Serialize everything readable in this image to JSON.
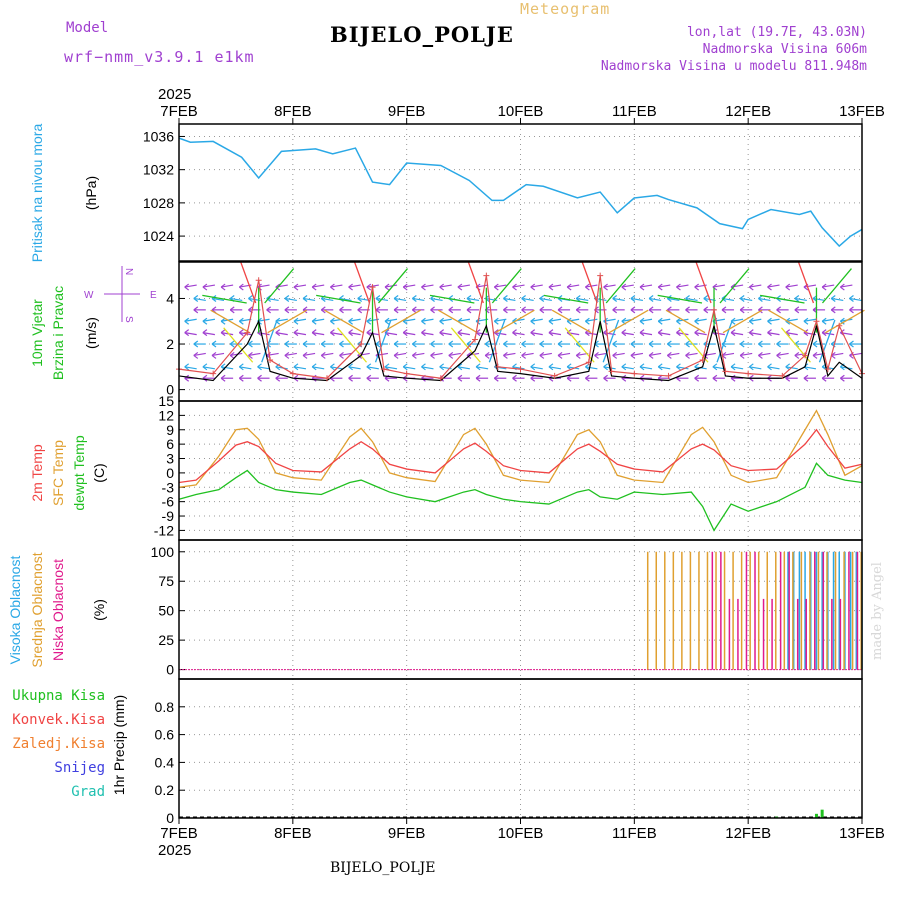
{
  "header": {
    "title": "BIJELO_POLJE",
    "model_label": "Model",
    "model_name": "wrf−nmm_v3.9.1  e1km",
    "meteogram": "Meteogram",
    "lonlat": "lon,lat (19.7E, 43.03N)",
    "elevation": "Nadmorska Visina 606m",
    "elevation_model": "Nadmorska Visina u modelu 811.948m",
    "footer": "BIJELO_POLJE",
    "credit": "made by Angel"
  },
  "time_axis": {
    "year": "2025",
    "ticks": [
      "7FEB",
      "8FEB",
      "9FEB",
      "10FEB",
      "11FEB",
      "12FEB",
      "13FEB"
    ]
  },
  "colors": {
    "pressure": "#2aa8e6",
    "t2m": "#f04444",
    "sfc": "#e0a030",
    "dewpt": "#20c020",
    "wind_speed": "#000000",
    "gust": "#e05050",
    "high_cloud": "#2aa8e6",
    "mid_cloud": "#e0a030",
    "low_cloud": "#e01a8c",
    "purple": "#a040d0",
    "grid": "#999999"
  },
  "wind_compass": {
    "n": "N",
    "s": "S",
    "e": "E",
    "w": "W"
  },
  "chart_data": [
    {
      "type": "line",
      "panel": "pressure",
      "ylabels": [
        "Pritisak na nivou mora",
        "(hPa)"
      ],
      "yticks": [
        "1024",
        "1028",
        "1032",
        "1036"
      ],
      "ylim": [
        1021,
        1037.5
      ],
      "x": [
        0,
        0.1,
        0.3,
        0.55,
        0.7,
        0.9,
        1.2,
        1.35,
        1.55,
        1.7,
        1.85,
        2.0,
        2.3,
        2.55,
        2.75,
        2.85,
        3.05,
        3.2,
        3.5,
        3.7,
        3.85,
        4.0,
        4.2,
        4.3,
        4.55,
        4.75,
        4.95,
        5.0,
        5.2,
        5.45,
        5.55,
        5.65,
        5.8,
        5.9,
        6.0
      ],
      "series": [
        {
          "values": [
            1035.8,
            1035.3,
            1035.4,
            1033.5,
            1031,
            1034.2,
            1034.5,
            1033.9,
            1034.6,
            1030.5,
            1030.2,
            1032.8,
            1032.5,
            1030.7,
            1028.3,
            1028.3,
            1030.2,
            1030.0,
            1028.6,
            1029.3,
            1026.8,
            1028.6,
            1028.9,
            1028.4,
            1027.4,
            1025.5,
            1024.9,
            1026.0,
            1027.2,
            1026.6,
            1027.0,
            1025.0,
            1022.8,
            1024.0,
            1024.8
          ]
        }
      ]
    },
    {
      "type": "line",
      "panel": "wind",
      "ylabels": [
        "10m Vjetar",
        "Brzina i Pravac",
        "(m/s)"
      ],
      "yticks": [
        "0",
        "2",
        "4"
      ],
      "ylim": [
        -0.5,
        5.6
      ],
      "x": [
        0,
        0.3,
        0.6,
        0.7,
        0.8,
        1.0,
        1.3,
        1.6,
        1.7,
        1.8,
        2.0,
        2.3,
        2.6,
        2.7,
        2.8,
        3.0,
        3.3,
        3.6,
        3.7,
        3.8,
        4.0,
        4.3,
        4.6,
        4.7,
        4.8,
        5.0,
        5.3,
        5.5,
        5.6,
        5.7,
        5.8,
        6.0
      ],
      "series": [
        {
          "name": "speed",
          "values": [
            0.6,
            0.4,
            2.0,
            3.0,
            0.8,
            0.5,
            0.4,
            1.5,
            2.5,
            0.6,
            0.5,
            0.4,
            1.7,
            2.8,
            0.8,
            0.7,
            0.5,
            0.8,
            3.0,
            0.6,
            0.5,
            0.4,
            1.0,
            2.8,
            0.6,
            0.5,
            0.5,
            1.0,
            2.8,
            0.6,
            1.2,
            0.5
          ]
        },
        {
          "name": "gust",
          "values": [
            0.9,
            0.7,
            2.5,
            4.8,
            1.3,
            0.7,
            0.5,
            2.0,
            4.5,
            0.9,
            0.7,
            0.5,
            2.2,
            5.0,
            1.0,
            0.9,
            0.6,
            1.2,
            5.0,
            0.8,
            0.7,
            0.6,
            1.3,
            3.5,
            0.8,
            0.7,
            0.6,
            1.5,
            3.0,
            0.9,
            2.8,
            0.7
          ]
        }
      ]
    },
    {
      "type": "line",
      "panel": "temperature",
      "ylabels": [
        "2m Temp",
        "SFC Temp",
        "dewpt Temp",
        "(C)"
      ],
      "yticks": [
        "-12",
        "-9",
        "-6",
        "-3",
        "0",
        "3",
        "6",
        "9",
        "12",
        "15"
      ],
      "ylim": [
        -14,
        15
      ],
      "x": [
        0,
        0.15,
        0.35,
        0.5,
        0.6,
        0.7,
        0.85,
        1.0,
        1.25,
        1.5,
        1.6,
        1.7,
        1.85,
        2.0,
        2.25,
        2.5,
        2.6,
        2.7,
        2.85,
        3.0,
        3.25,
        3.5,
        3.6,
        3.7,
        3.85,
        4.0,
        4.25,
        4.5,
        4.6,
        4.7,
        4.85,
        5.0,
        5.25,
        5.5,
        5.6,
        5.7,
        5.85,
        6.0
      ],
      "series": [
        {
          "name": "2m Temp",
          "values": [
            -2.0,
            -1.5,
            2.5,
            5.8,
            6.5,
            5.5,
            2.0,
            0.5,
            0.2,
            5.0,
            6.5,
            5.0,
            1.8,
            0.8,
            0.0,
            5.0,
            6.2,
            4.5,
            1.5,
            0.5,
            0.0,
            5.0,
            6.0,
            4.5,
            1.8,
            0.8,
            0.2,
            5.0,
            6.0,
            4.8,
            1.5,
            0.5,
            0.8,
            6.0,
            9.0,
            5.5,
            1.0,
            1.8
          ]
        },
        {
          "name": "SFC Temp",
          "values": [
            -3.0,
            -2.5,
            3.5,
            9.0,
            9.3,
            7.0,
            0.0,
            -1.0,
            -1.5,
            7.5,
            9.3,
            6.5,
            0.0,
            -1.0,
            -1.8,
            8.0,
            9.3,
            6.0,
            -0.5,
            -1.5,
            -2.0,
            8.0,
            9.0,
            6.5,
            -0.5,
            -1.5,
            -2.0,
            8.0,
            9.5,
            6.5,
            -0.5,
            -2.0,
            -1.0,
            9.0,
            13.0,
            8.0,
            -0.5,
            1.5
          ]
        },
        {
          "name": "dewpt Temp",
          "values": [
            -5.5,
            -4.5,
            -3.5,
            -1.0,
            0.5,
            -2.0,
            -3.5,
            -4.0,
            -4.5,
            -2.0,
            -1.5,
            -2.5,
            -4.0,
            -5.0,
            -6.0,
            -4.0,
            -3.5,
            -4.5,
            -5.5,
            -6.0,
            -6.5,
            -4.0,
            -3.5,
            -5.0,
            -5.5,
            -4.0,
            -4.5,
            -4.0,
            -7.0,
            -12.0,
            -6.5,
            -8.0,
            -6.0,
            -3.0,
            2.0,
            -0.5,
            -1.5,
            -2.0
          ]
        }
      ]
    },
    {
      "type": "bar",
      "panel": "cloud",
      "ylabels": [
        "Visoka Oblacnost",
        "Srednja Oblacnost",
        "Niska Oblacnost",
        "(%)"
      ],
      "yticks": [
        "0",
        "25",
        "50",
        "75",
        "100"
      ],
      "ylim": [
        -8,
        110
      ],
      "series": [
        {
          "name": "Visoka Oblacnost",
          "x_from": 5.35,
          "x_to": 6.0,
          "value": 100
        },
        {
          "name": "Srednja Oblacnost",
          "x_from": 4.1,
          "x_to": 6.0,
          "value": 100
        },
        {
          "name": "Niska Oblacnost",
          "x_from": 4.65,
          "x_to": 6.0,
          "value": 100
        }
      ]
    },
    {
      "type": "bar",
      "panel": "precip",
      "ylabels": [
        "1hr Precip (mm)"
      ],
      "legend": [
        "Ukupna Kisa",
        "Konvek.Kisa",
        "Zaledj.Kisa",
        "Snijeg",
        "Grad"
      ],
      "yticks": [
        "0",
        "0.2",
        "0.4",
        "0.6",
        "0.8"
      ],
      "ylim": [
        0,
        1.0
      ],
      "x": [
        5.25,
        5.6,
        5.65
      ],
      "series": [
        {
          "name": "Ukupna Kisa",
          "values": [
            0.01,
            0.03,
            0.06
          ]
        }
      ]
    }
  ]
}
